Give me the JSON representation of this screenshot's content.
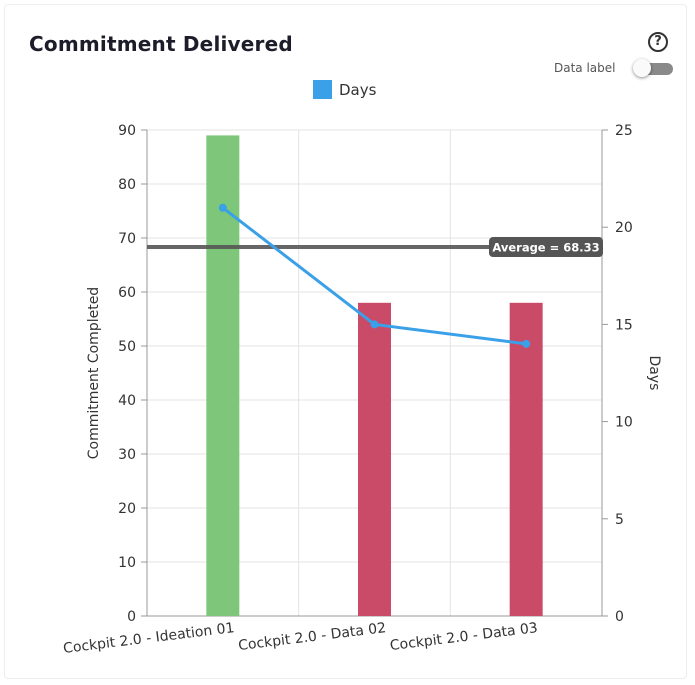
{
  "header": {
    "title": "Commitment Delivered",
    "help_glyph": "?",
    "data_label_text": "Data label",
    "data_label_enabled": false
  },
  "chart_data": {
    "type": "bar",
    "categories": [
      "Cockpit 2.0 - Ideation 01",
      "Cockpit 2.0 - Data 02",
      "Cockpit 2.0 - Data 03"
    ],
    "series": [
      {
        "name": "Commitment Completed",
        "type": "bar",
        "axis": "left",
        "values": [
          89,
          58,
          58
        ],
        "colors": [
          "#7dc67a",
          "#c94b67",
          "#c94b67"
        ]
      },
      {
        "name": "Days",
        "type": "line",
        "axis": "right",
        "values": [
          21,
          15,
          14
        ],
        "color": "#3aa0e8"
      }
    ],
    "legend": [
      {
        "label": "Days",
        "color": "#3aa0e8"
      }
    ],
    "legend_position": "top-center",
    "y_left": {
      "label": "Commitment Completed",
      "min": 0,
      "max": 90,
      "ticks": [
        0,
        10,
        20,
        30,
        40,
        50,
        60,
        70,
        80,
        90
      ]
    },
    "y_right": {
      "label": "Days",
      "min": 0,
      "max": 25,
      "ticks": [
        0,
        5,
        10,
        15,
        20,
        25
      ]
    },
    "average_line": {
      "value": 68.33,
      "label": "Average = 68.33",
      "color": "#555555"
    },
    "grid": true
  }
}
